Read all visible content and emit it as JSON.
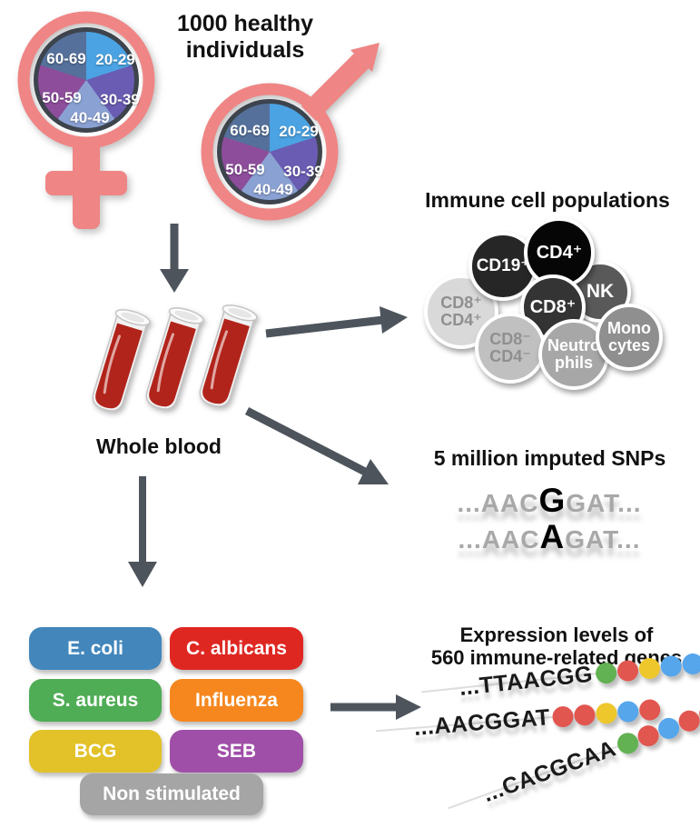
{
  "title": {
    "line1": "1000 healthy",
    "line2": "individuals"
  },
  "demographics": {
    "female_symbol": "female-sign",
    "male_symbol": "male-sign",
    "symbol_color": "#ef8585",
    "age_groups": [
      "20-29",
      "30-39",
      "40-49",
      "50-59",
      "60-69"
    ],
    "slice_colors": [
      "#4ba3e3",
      "#6a5cb2",
      "#8aa1d3",
      "#8d4d9b",
      "#55719b"
    ],
    "pie_border_color": "#3d444d"
  },
  "whole_blood": {
    "label": "Whole blood",
    "tube_count": 3,
    "blood_color": "#b1241b"
  },
  "immune_cells": {
    "title": "Immune cell populations",
    "cells": [
      {
        "label": "CD8⁺\nCD4⁺",
        "color": "#d9d9d9",
        "text_color": "#8f8f8f"
      },
      {
        "label": "CD19⁺",
        "color": "#262626",
        "text_color": "#ffffff"
      },
      {
        "label": "NK",
        "color": "#595959",
        "text_color": "#ffffff"
      },
      {
        "label": "CD4⁺",
        "color": "#060606",
        "text_color": "#ffffff"
      },
      {
        "label": "CD8⁺",
        "color": "#343434",
        "text_color": "#ffffff"
      },
      {
        "label": "CD8⁻\nCD4⁻",
        "color": "#c0c0c0",
        "text_color": "#8f8f8f"
      },
      {
        "label": "Neutro\nphils",
        "color": "#a7a7a7",
        "text_color": "#ffffff"
      },
      {
        "label": "Mono\ncytes",
        "color": "#8f8f8f",
        "text_color": "#ffffff"
      }
    ]
  },
  "snps": {
    "title": "5 million imputed SNPs",
    "lines": [
      {
        "prefix": "...AAC",
        "variant": "G",
        "suffix": "GAT..."
      },
      {
        "prefix": "...AAC",
        "variant": "A",
        "suffix": "GAT..."
      }
    ]
  },
  "stimuli": {
    "items": [
      {
        "label": "E. coli",
        "color": "#4286bb"
      },
      {
        "label": "C. albicans",
        "color": "#df2722"
      },
      {
        "label": "S. aureus",
        "color": "#4fad55"
      },
      {
        "label": "Influenza",
        "color": "#f6871f"
      },
      {
        "label": "BCG",
        "color": "#e2c228"
      },
      {
        "label": "SEB",
        "color": "#a04fa8"
      },
      {
        "label": "Non stimulated",
        "color": "#a5a5a5"
      }
    ]
  },
  "expression": {
    "title_line1": "Expression levels of",
    "title_line2": "560 immune-related genes",
    "dot_palette": {
      "green": "#62b152",
      "red": "#e25650",
      "yellow": "#eec72c",
      "blue": "#56a6ec"
    },
    "rows": [
      {
        "sequence": "...TTAACGG",
        "dots": [
          "green",
          "red",
          "yellow",
          "blue",
          "blue"
        ]
      },
      {
        "sequence": "...AACGGAT",
        "dots": [
          "red",
          "red",
          "yellow",
          "blue",
          "red"
        ]
      },
      {
        "sequence": "...CACGCAA",
        "dots": [
          "green",
          "red",
          "blue",
          "red",
          "red"
        ]
      }
    ]
  },
  "arrows": {
    "color": "#4d545c"
  }
}
